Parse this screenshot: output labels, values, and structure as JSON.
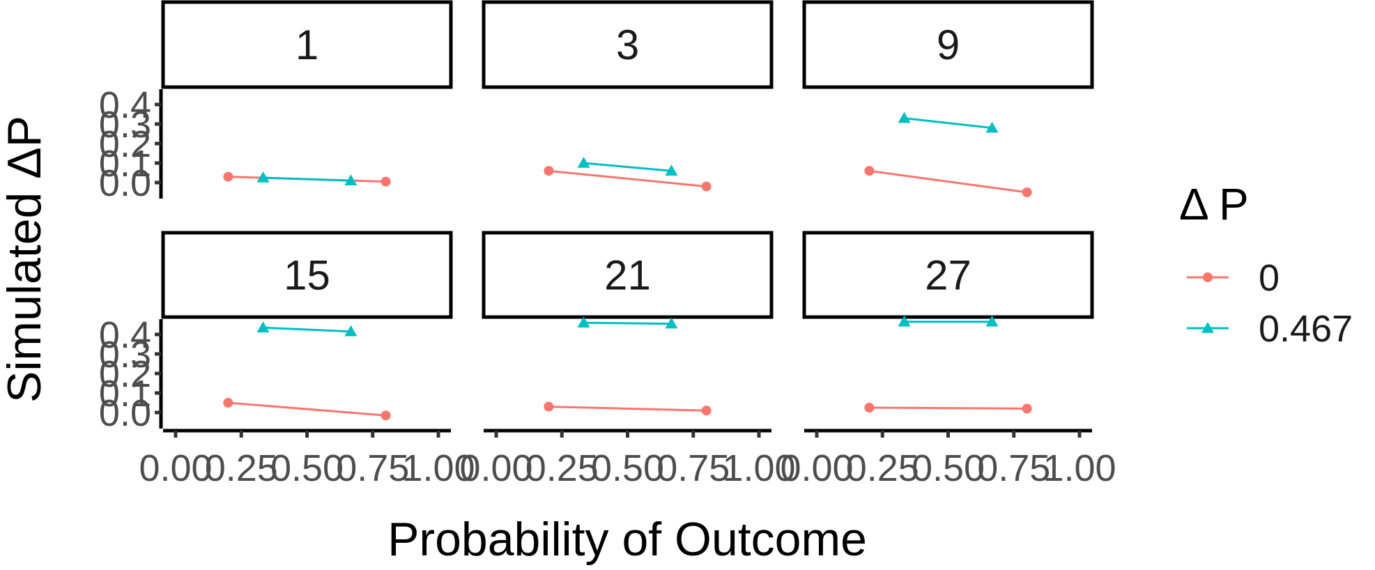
{
  "chart_data": {
    "type": "line",
    "xlabel": "Probability of Outcome",
    "ylabel": "Simulated ΔP",
    "xlim": [
      0,
      1
    ],
    "ylim": [
      0,
      0.4
    ],
    "x_ticks": [
      "0.00",
      "0.25",
      "0.50",
      "0.75",
      "1.00"
    ],
    "y_ticks": [
      "0.0",
      "0.1",
      "0.2",
      "0.3",
      "0.4"
    ],
    "legend": {
      "title": "Δ P",
      "placement": "right",
      "entries": [
        {
          "label": "0",
          "color": "#F8766D",
          "marker": "circle"
        },
        {
          "label": "0.467",
          "color": "#00BFC4",
          "marker": "triangle"
        }
      ]
    },
    "grid": false,
    "facets": [
      {
        "label": "1",
        "series": [
          {
            "name": "0",
            "points": [
              [
                0.2,
                0.03
              ],
              [
                0.8,
                0.005
              ]
            ]
          },
          {
            "name": "0.467",
            "points": [
              [
                0.333,
                0.025
              ],
              [
                0.667,
                0.01
              ]
            ]
          }
        ]
      },
      {
        "label": "3",
        "series": [
          {
            "name": "0",
            "points": [
              [
                0.2,
                0.06
              ],
              [
                0.8,
                -0.02
              ]
            ]
          },
          {
            "name": "0.467",
            "points": [
              [
                0.333,
                0.1
              ],
              [
                0.667,
                0.06
              ]
            ]
          }
        ]
      },
      {
        "label": "9",
        "series": [
          {
            "name": "0",
            "points": [
              [
                0.2,
                0.06
              ],
              [
                0.8,
                -0.05
              ]
            ]
          },
          {
            "name": "0.467",
            "points": [
              [
                0.333,
                0.33
              ],
              [
                0.667,
                0.28
              ]
            ]
          }
        ]
      },
      {
        "label": "15",
        "series": [
          {
            "name": "0",
            "points": [
              [
                0.2,
                0.05
              ],
              [
                0.8,
                -0.015
              ]
            ]
          },
          {
            "name": "0.467",
            "points": [
              [
                0.333,
                0.435
              ],
              [
                0.667,
                0.415
              ]
            ]
          }
        ]
      },
      {
        "label": "21",
        "series": [
          {
            "name": "0",
            "points": [
              [
                0.2,
                0.03
              ],
              [
                0.8,
                0.01
              ]
            ]
          },
          {
            "name": "0.467",
            "points": [
              [
                0.333,
                0.46
              ],
              [
                0.667,
                0.455
              ]
            ]
          }
        ]
      },
      {
        "label": "27",
        "series": [
          {
            "name": "0",
            "points": [
              [
                0.2,
                0.025
              ],
              [
                0.8,
                0.02
              ]
            ]
          },
          {
            "name": "0.467",
            "points": [
              [
                0.333,
                0.465
              ],
              [
                0.667,
                0.465
              ]
            ]
          }
        ]
      }
    ]
  }
}
